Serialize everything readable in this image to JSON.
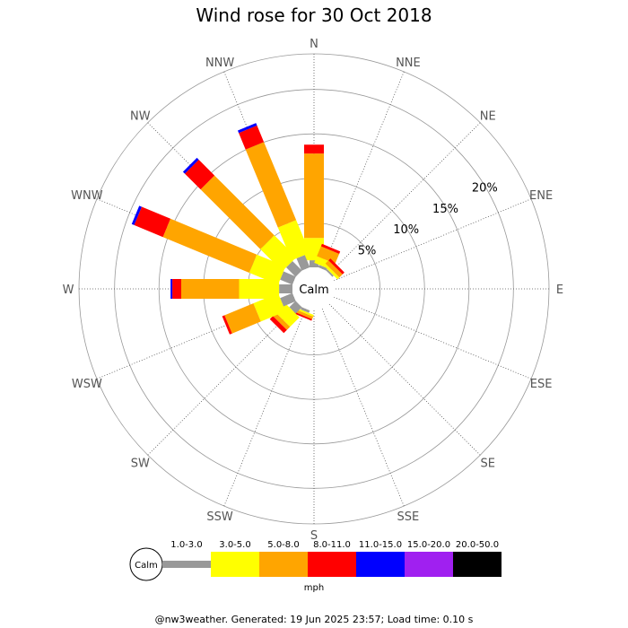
{
  "chart_data": {
    "type": "windrose",
    "title": "Wind rose for 30 Oct 2018",
    "calm_label": "Calm",
    "directions": [
      "N",
      "NNE",
      "NE",
      "ENE",
      "E",
      "ESE",
      "SE",
      "SSE",
      "S",
      "SSW",
      "SW",
      "WSW",
      "W",
      "WNW",
      "NW",
      "NNW"
    ],
    "radial_ticks": [
      {
        "value": 5,
        "label": "5%"
      },
      {
        "value": 10,
        "label": "10%"
      },
      {
        "value": 15,
        "label": "15%"
      },
      {
        "value": 20,
        "label": "20%"
      }
    ],
    "rmax": 24,
    "units": "mph",
    "speed_bins": [
      {
        "label": "1.0-3.0",
        "color": "#999999"
      },
      {
        "label": "3.0-5.0",
        "color": "#ffff00"
      },
      {
        "label": "5.0-8.0",
        "color": "#ffa500"
      },
      {
        "label": "8.0-11.0",
        "color": "#ff0000"
      },
      {
        "label": "11.0-15.0",
        "color": "#0000ff"
      },
      {
        "label": "15.0-20.0",
        "color": "#a020f0"
      },
      {
        "label": "20.0-50.0",
        "color": "#000000"
      }
    ],
    "series": [
      {
        "direction": "N",
        "values": [
          0.8,
          2.5,
          9.5,
          1.0,
          0.0,
          0,
          0
        ]
      },
      {
        "direction": "NNE",
        "values": [
          0.3,
          0.8,
          1.2,
          0.3,
          0.0,
          0,
          0
        ]
      },
      {
        "direction": "NE",
        "values": [
          0.2,
          0.3,
          0.5,
          0.3,
          0.0,
          0,
          0
        ]
      },
      {
        "direction": "ENE",
        "values": [
          0,
          0,
          0,
          0,
          0,
          0,
          0
        ]
      },
      {
        "direction": "E",
        "values": [
          0,
          0,
          0,
          0,
          0,
          0,
          0
        ]
      },
      {
        "direction": "ESE",
        "values": [
          0,
          0,
          0,
          0,
          0,
          0,
          0
        ]
      },
      {
        "direction": "SE",
        "values": [
          0,
          0,
          0,
          0,
          0,
          0,
          0
        ]
      },
      {
        "direction": "SSE",
        "values": [
          0,
          0,
          0,
          0,
          0,
          0,
          0
        ]
      },
      {
        "direction": "S",
        "values": [
          0,
          0,
          0,
          0,
          0,
          0,
          0
        ]
      },
      {
        "direction": "SSW",
        "values": [
          0.3,
          0.2,
          0.3,
          0.2,
          0.0,
          0,
          0
        ]
      },
      {
        "direction": "SW",
        "values": [
          1.0,
          1.5,
          0.5,
          0.5,
          0.0,
          0,
          0
        ]
      },
      {
        "direction": "WSW",
        "values": [
          1.5,
          3.0,
          3.5,
          0.3,
          0.0,
          0,
          0
        ]
      },
      {
        "direction": "W",
        "values": [
          1.5,
          4.5,
          6.5,
          1.0,
          0.2,
          0,
          0
        ]
      },
      {
        "direction": "WNW",
        "values": [
          1.5,
          3.5,
          10.5,
          3.5,
          0.3,
          0,
          0
        ]
      },
      {
        "direction": "NW",
        "values": [
          1.5,
          3.5,
          9.5,
          2.5,
          0.3,
          0,
          0
        ]
      },
      {
        "direction": "NNW",
        "values": [
          1.5,
          4.0,
          9.5,
          2.0,
          0.3,
          0,
          0
        ]
      }
    ]
  },
  "legend_title": "mph",
  "footer": "@nw3weather. Generated: 19 Jun 2025 23:57; Load time: 0.10 s"
}
